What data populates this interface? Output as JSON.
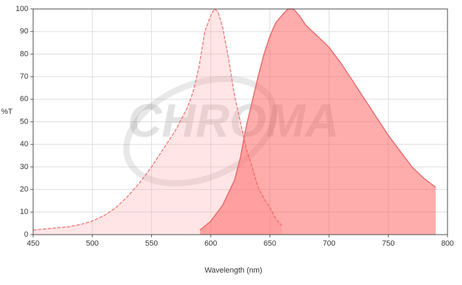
{
  "chart_data": {
    "type": "area",
    "xlabel": "Wavelength (nm)",
    "ylabel": "%T",
    "watermark": "CHROMA",
    "xlim": [
      450,
      800
    ],
    "xticks": [
      450,
      500,
      550,
      600,
      650,
      700,
      750,
      800
    ],
    "ylim": [
      0,
      100
    ],
    "yticks": [
      0,
      10,
      20,
      30,
      40,
      50,
      60,
      70,
      80,
      90,
      100
    ],
    "grid": true,
    "series": [
      {
        "color": "#f08080",
        "fill": "rgba(255,160,160,0.28)",
        "x": [
          450,
          460,
          470,
          480,
          490,
          500,
          510,
          520,
          530,
          540,
          550,
          560,
          570,
          580,
          585,
          590,
          595,
          600,
          603,
          606,
          610,
          615,
          620,
          625,
          630,
          635,
          640,
          645,
          650,
          655,
          660
        ],
        "values": [
          2,
          2.5,
          3,
          3.5,
          4.5,
          6,
          8.5,
          12,
          17,
          23,
          30,
          38,
          46,
          56,
          63,
          74,
          90,
          97,
          100,
          99,
          92,
          78,
          62,
          50,
          38,
          30,
          21,
          16,
          12,
          7,
          4
        ]
      },
      {
        "color": "#e86a6a",
        "fill": "rgba(255,90,90,0.5)",
        "x": [
          591,
          600,
          610,
          620,
          625,
          630,
          640,
          645,
          650,
          655,
          660,
          665,
          670,
          675,
          680,
          690,
          700,
          710,
          720,
          730,
          740,
          750,
          760,
          770,
          780,
          790
        ],
        "values": [
          2,
          6,
          13,
          24,
          34,
          48,
          70,
          80,
          88,
          94,
          97,
          100,
          100,
          97,
          93,
          88,
          83,
          76,
          68,
          60,
          52,
          44,
          37,
          30,
          25,
          21
        ]
      }
    ]
  }
}
